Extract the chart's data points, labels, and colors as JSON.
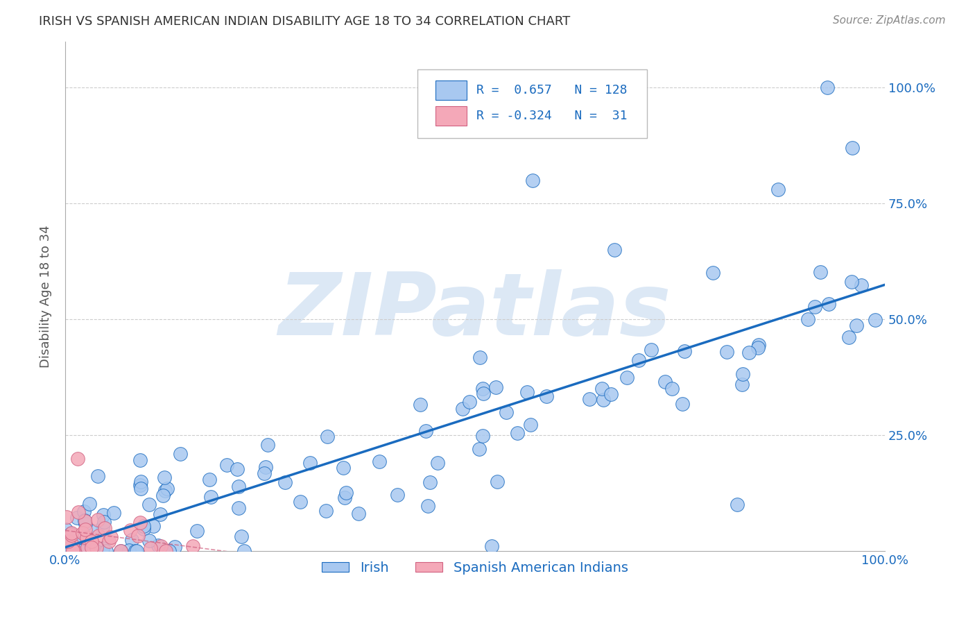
{
  "title": "IRISH VS SPANISH AMERICAN INDIAN DISABILITY AGE 18 TO 34 CORRELATION CHART",
  "source": "Source: ZipAtlas.com",
  "ylabel": "Disability Age 18 to 34",
  "xlim": [
    0.0,
    1.0
  ],
  "ylim": [
    0.0,
    1.1
  ],
  "irish_R": 0.657,
  "irish_N": 128,
  "spanish_R": -0.324,
  "spanish_N": 31,
  "irish_color": "#a8c8f0",
  "spanish_color": "#f4a8b8",
  "irish_line_color": "#1a6bbf",
  "spanish_edge_color": "#d06080",
  "regression_line_color": "#1a6bbf",
  "background_color": "#ffffff",
  "watermark_color": "#dce8f5",
  "legend_irish": "Irish",
  "legend_spanish": "Spanish American Indians",
  "grid_color": "#cccccc",
  "spine_color": "#aaaaaa",
  "title_color": "#333333",
  "source_color": "#888888",
  "tick_label_color": "#1a6bbf",
  "ylabel_color": "#555555"
}
